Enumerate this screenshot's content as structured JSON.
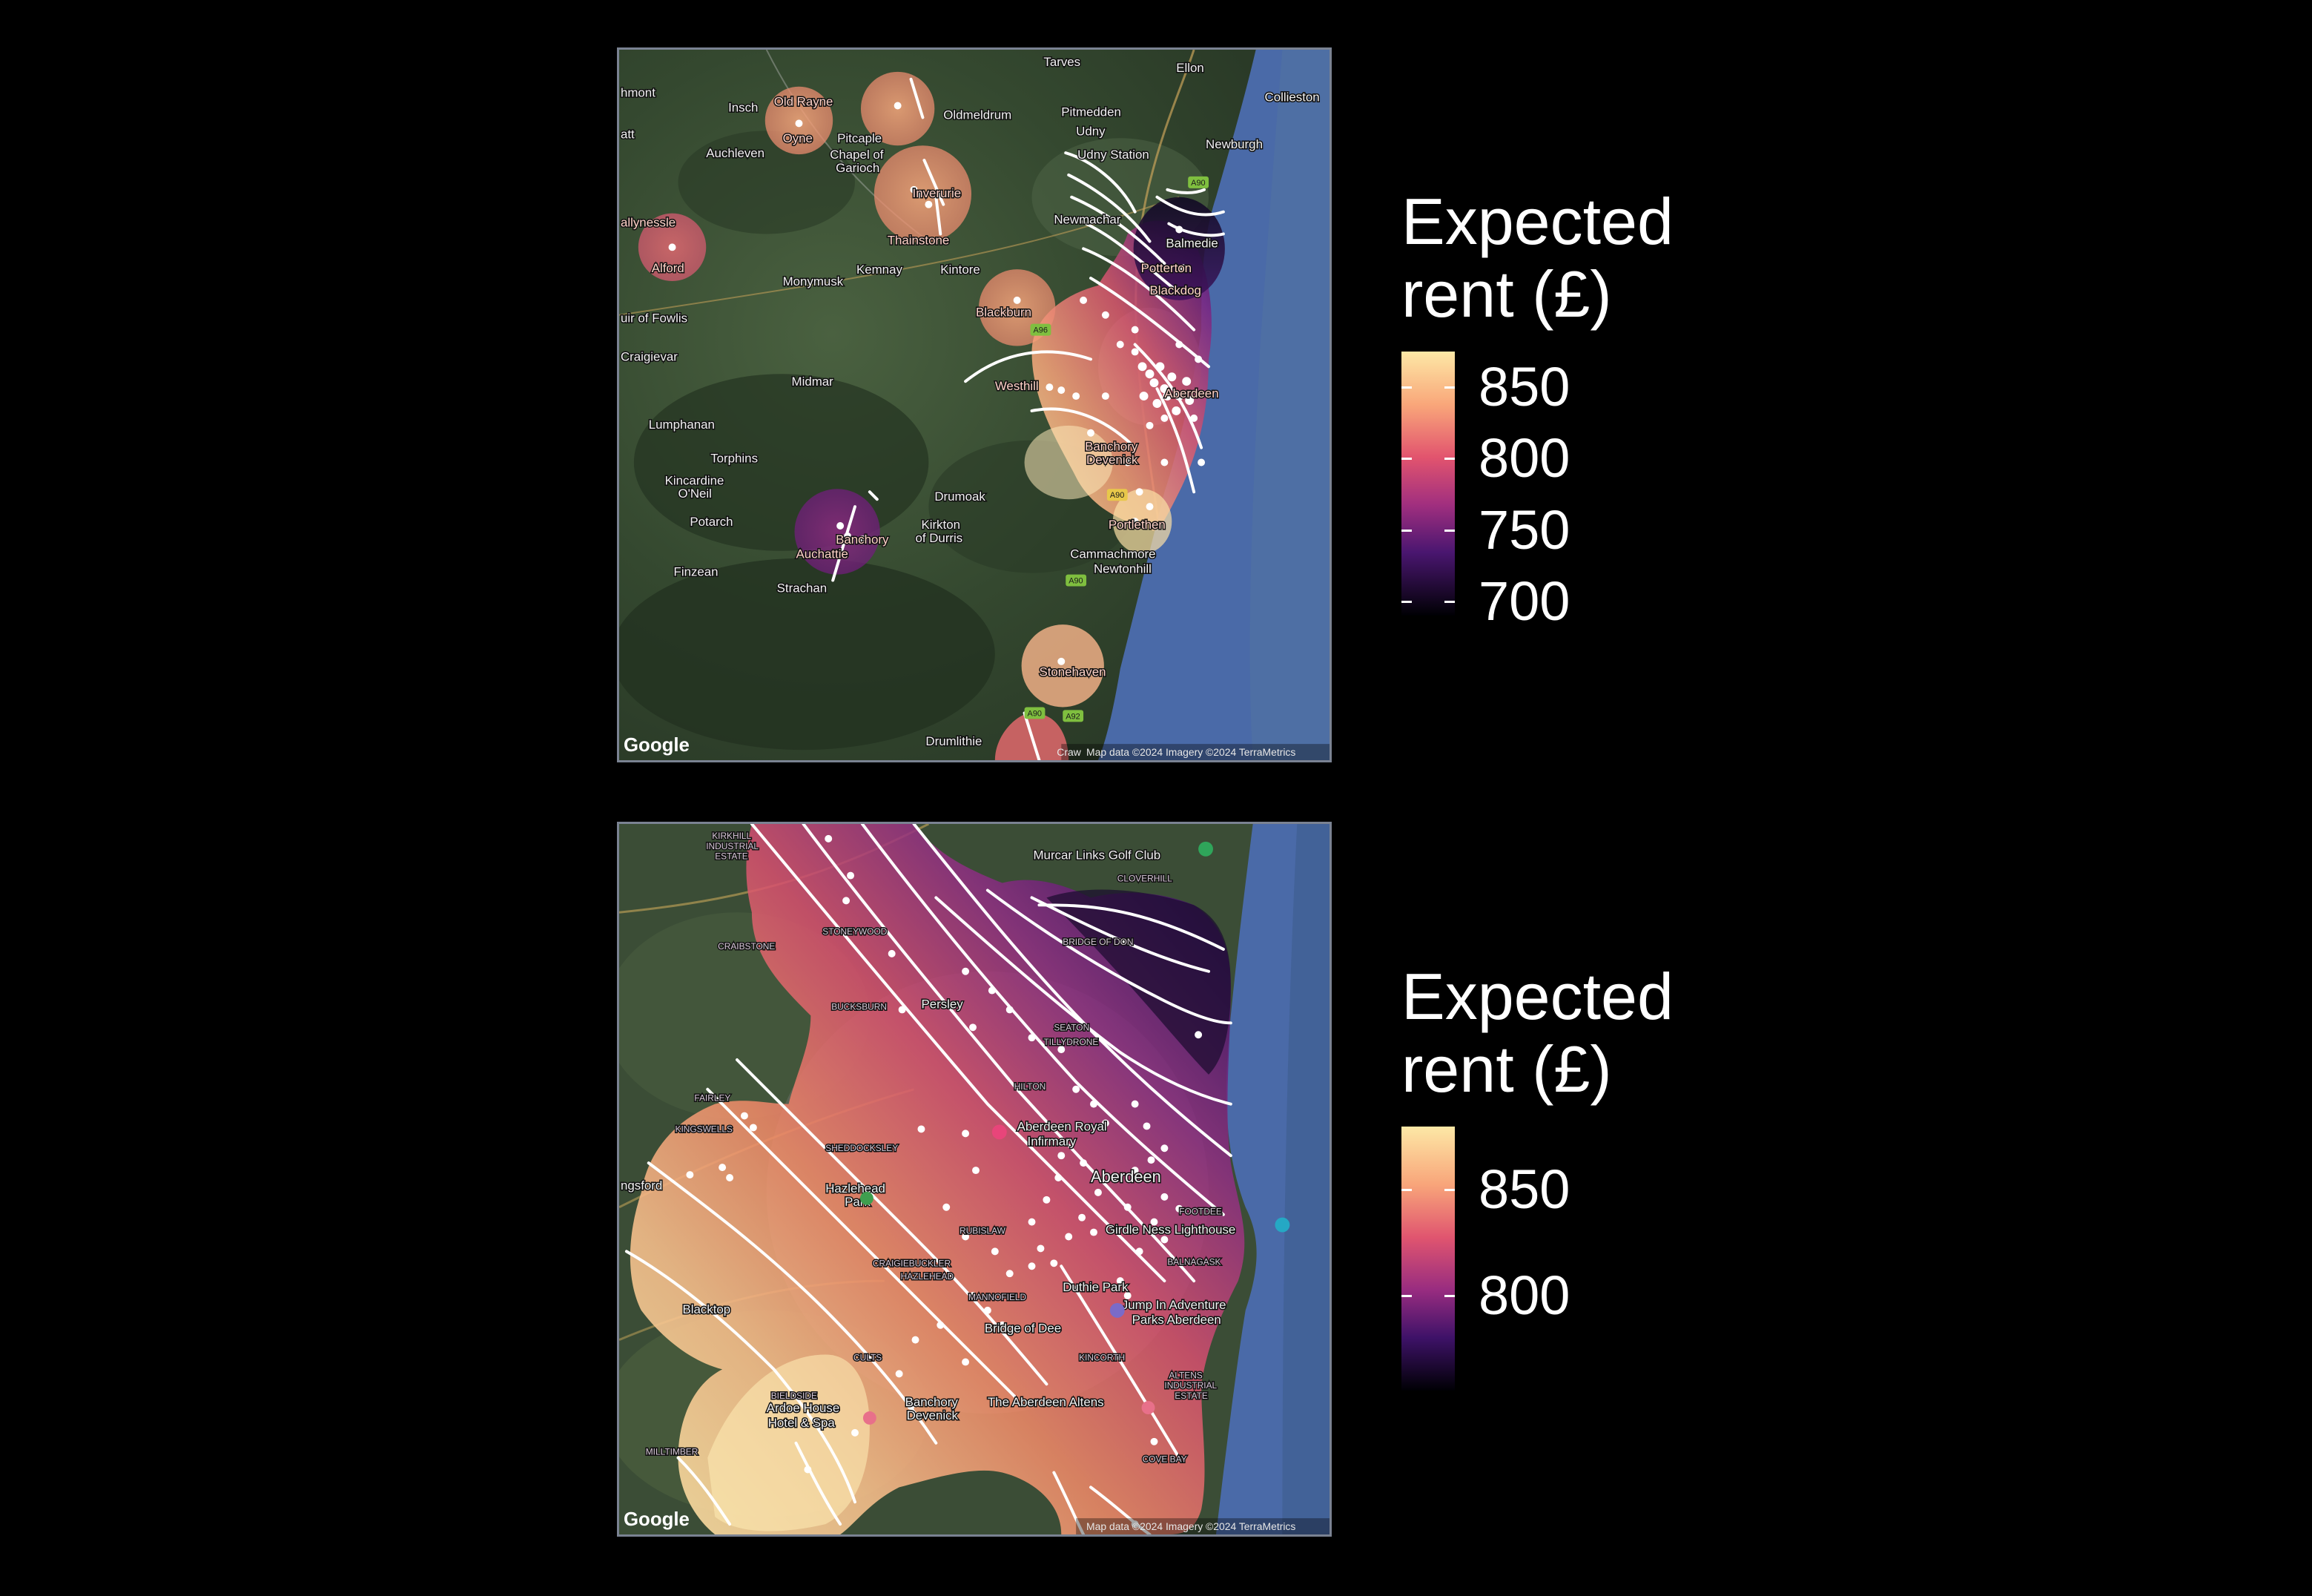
{
  "colors": {
    "sea": "#4a6aa8",
    "land_dark": "#2c3d2a",
    "land_mid": "#3f5637",
    "urban": "#6a6a66",
    "contour": "#ffffff",
    "point": "#ffffff",
    "frame": "#7a8292",
    "magma_low": "#0d0829",
    "magma_mid": "#7c2a80",
    "magma_hi": "#f07b5d",
    "magma_top": "#fde8a6"
  },
  "top_map": {
    "google_logo": "Google",
    "attribution": "Map data ©2024 Imagery ©2024 TerraMetrics",
    "attribution_left": "Craw",
    "places": [
      {
        "name": "Tarves"
      },
      {
        "name": "Ellon"
      },
      {
        "name": "hmont"
      },
      {
        "name": "Collieston"
      },
      {
        "name": "Insch"
      },
      {
        "name": "Old Rayne"
      },
      {
        "name": "Oldmeldrum"
      },
      {
        "name": "Pitmedden"
      },
      {
        "name": "Udny"
      },
      {
        "name": "Newburgh"
      },
      {
        "name": "att"
      },
      {
        "name": "Oyne"
      },
      {
        "name": "Pitcaple"
      },
      {
        "name": "Auchleven"
      },
      {
        "name": "Chapel of"
      },
      {
        "name": "Garioch"
      },
      {
        "name": "Udny Station"
      },
      {
        "name": "Inverurie"
      },
      {
        "name": "Newmachar"
      },
      {
        "name": "Balmedie"
      },
      {
        "name": "allynessle"
      },
      {
        "name": "Thainstone"
      },
      {
        "name": "Alford"
      },
      {
        "name": "Kemnay"
      },
      {
        "name": "Kintore"
      },
      {
        "name": "Potterton"
      },
      {
        "name": "Monymusk"
      },
      {
        "name": "Blackdog"
      },
      {
        "name": "Blackburn"
      },
      {
        "name": "uir of Fowlis"
      },
      {
        "name": "Craigievar"
      },
      {
        "name": "Aberdeen"
      },
      {
        "name": "Midmar"
      },
      {
        "name": "Westhill"
      },
      {
        "name": "Lumphanan"
      },
      {
        "name": "Torphins"
      },
      {
        "name": "Banchory"
      },
      {
        "name": "Devenick"
      },
      {
        "name": "Kincardine"
      },
      {
        "name": "O'Neil"
      },
      {
        "name": "Drumoak"
      },
      {
        "name": "Potarch"
      },
      {
        "name": "Banchory"
      },
      {
        "name": "Kirkton"
      },
      {
        "name": "of Durris"
      },
      {
        "name": "Portlethen"
      },
      {
        "name": "Auchattie"
      },
      {
        "name": "Cammachmore"
      },
      {
        "name": "Newtonhill"
      },
      {
        "name": "Finzean"
      },
      {
        "name": "Strachan"
      },
      {
        "name": "Stonehaven"
      },
      {
        "name": "Drumlithie"
      }
    ],
    "roads": [
      "A90",
      "A96",
      "A90",
      "A90",
      "A92",
      "A90"
    ]
  },
  "bottom_map": {
    "google_logo": "Google",
    "attribution": "Map data ©2024 Imagery ©2024 TerraMetrics",
    "places": [
      {
        "name": "KIRKHILL"
      },
      {
        "name": "INDUSTRIAL"
      },
      {
        "name": "ESTATE"
      },
      {
        "name": "Murcar Links Golf Club"
      },
      {
        "name": "CLOVERHILL"
      },
      {
        "name": "CRAIBSTONE"
      },
      {
        "name": "STONEYWOOD"
      },
      {
        "name": "BRIDGE OF DON"
      },
      {
        "name": "BUCKSBURN"
      },
      {
        "name": "Persley"
      },
      {
        "name": "SEATON"
      },
      {
        "name": "TILLYDRONE"
      },
      {
        "name": "FAIRLEY"
      },
      {
        "name": "KINGSWELLS"
      },
      {
        "name": "HILTON"
      },
      {
        "name": "Aberdeen Royal"
      },
      {
        "name": "Infirmary"
      },
      {
        "name": "SHEDDOCKSLEY"
      },
      {
        "name": "Aberdeen"
      },
      {
        "name": "ngsford"
      },
      {
        "name": "Hazlehead"
      },
      {
        "name": "Park"
      },
      {
        "name": "FOOTDEE"
      },
      {
        "name": "Girdle Ness Lighthouse"
      },
      {
        "name": "RUBISLAW"
      },
      {
        "name": "CRAIGIEBUCKLER"
      },
      {
        "name": "HAZLEHEAD"
      },
      {
        "name": "BALNAGASK"
      },
      {
        "name": "MANNOFIELD"
      },
      {
        "name": "Duthie Park"
      },
      {
        "name": "Jump In Adventure"
      },
      {
        "name": "Parks Aberdeen"
      },
      {
        "name": "Blacktop"
      },
      {
        "name": "Bridge of Dee"
      },
      {
        "name": "CULTS"
      },
      {
        "name": "KINCORTH"
      },
      {
        "name": "ALTENS"
      },
      {
        "name": "INDUSTRIAL"
      },
      {
        "name": "ESTATE"
      },
      {
        "name": "BIELDSIDE"
      },
      {
        "name": "Ardoe House"
      },
      {
        "name": "Hotel & Spa"
      },
      {
        "name": "Banchory"
      },
      {
        "name": "Devenick"
      },
      {
        "name": "The Aberdeen Altens"
      },
      {
        "name": "MILLTIMBER"
      },
      {
        "name": "COVE BAY"
      }
    ]
  },
  "legend_top": {
    "title": "Expected\nrent (£)",
    "ticks": [
      {
        "label": "850",
        "value": 850
      },
      {
        "label": "800",
        "value": 800
      },
      {
        "label": "750",
        "value": 750
      },
      {
        "label": "700",
        "value": 700
      }
    ],
    "range": [
      690,
      875
    ]
  },
  "legend_bottom": {
    "title": "Expected\nrent (£)",
    "ticks": [
      {
        "label": "850",
        "value": 850
      },
      {
        "label": "800",
        "value": 800
      }
    ],
    "range": [
      755,
      880
    ]
  }
}
